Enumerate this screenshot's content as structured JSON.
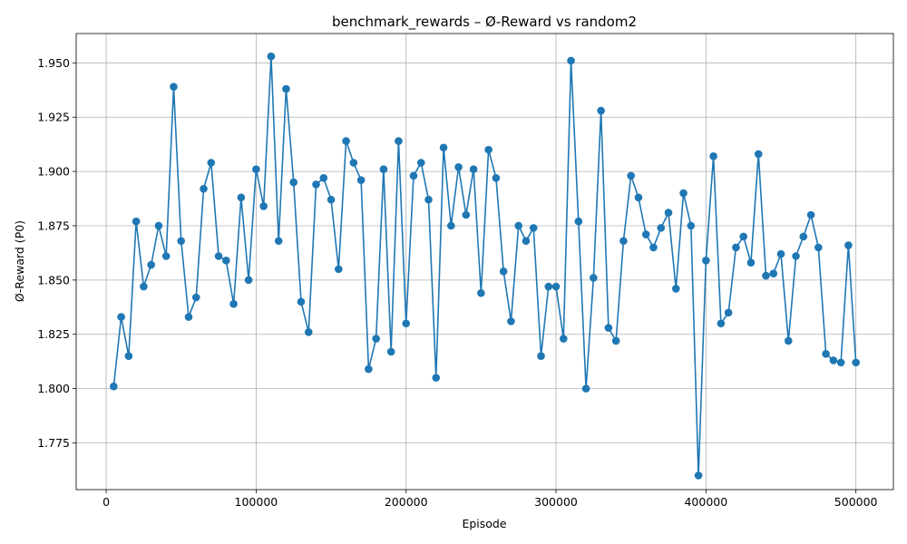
{
  "chart_data": {
    "type": "line",
    "title": "benchmark_rewards – Ø-Reward vs random2",
    "xlabel": "Episode",
    "ylabel": "Ø-Reward (P0)",
    "xlim": [
      -20000,
      525000
    ],
    "ylim": [
      1.7535,
      1.9635
    ],
    "xticks": [
      0,
      100000,
      200000,
      300000,
      400000,
      500000
    ],
    "xtick_labels": [
      "0",
      "100000",
      "200000",
      "300000",
      "400000",
      "500000"
    ],
    "yticks": [
      1.775,
      1.8,
      1.825,
      1.85,
      1.875,
      1.9,
      1.925,
      1.95
    ],
    "ytick_labels": [
      "1.775",
      "1.800",
      "1.825",
      "1.850",
      "1.875",
      "1.900",
      "1.925",
      "1.950"
    ],
    "grid": true,
    "color": "#1f77b4",
    "marker": "circle",
    "x": [
      5000,
      10000,
      15000,
      20000,
      25000,
      30000,
      35000,
      40000,
      45000,
      50000,
      55000,
      60000,
      65000,
      70000,
      75000,
      80000,
      85000,
      90000,
      95000,
      100000,
      105000,
      110000,
      115000,
      120000,
      125000,
      130000,
      135000,
      140000,
      145000,
      150000,
      155000,
      160000,
      165000,
      170000,
      175000,
      180000,
      185000,
      190000,
      195000,
      200000,
      205000,
      210000,
      215000,
      220000,
      225000,
      230000,
      235000,
      240000,
      245000,
      250000,
      255000,
      260000,
      265000,
      270000,
      275000,
      280000,
      285000,
      290000,
      295000,
      300000,
      305000,
      310000,
      315000,
      320000,
      325000,
      330000,
      335000,
      340000,
      345000,
      350000,
      355000,
      360000,
      365000,
      370000,
      375000,
      380000,
      385000,
      390000,
      395000,
      400000,
      405000,
      410000,
      415000,
      420000,
      425000,
      430000,
      435000,
      440000,
      445000,
      450000,
      455000,
      460000,
      465000,
      470000,
      475000,
      480000,
      485000,
      490000,
      495000,
      500000
    ],
    "y": [
      1.801,
      1.833,
      1.815,
      1.877,
      1.847,
      1.857,
      1.875,
      1.861,
      1.939,
      1.868,
      1.833,
      1.842,
      1.892,
      1.904,
      1.861,
      1.859,
      1.839,
      1.888,
      1.85,
      1.901,
      1.884,
      1.953,
      1.868,
      1.938,
      1.895,
      1.84,
      1.826,
      1.894,
      1.897,
      1.887,
      1.855,
      1.914,
      1.904,
      1.896,
      1.809,
      1.823,
      1.901,
      1.817,
      1.914,
      1.83,
      1.898,
      1.904,
      1.887,
      1.805,
      1.911,
      1.875,
      1.902,
      1.88,
      1.901,
      1.844,
      1.91,
      1.897,
      1.854,
      1.831,
      1.875,
      1.868,
      1.874,
      1.815,
      1.847,
      1.847,
      1.823,
      1.951,
      1.877,
      1.8,
      1.851,
      1.928,
      1.828,
      1.822,
      1.868,
      1.898,
      1.888,
      1.871,
      1.865,
      1.874,
      1.881,
      1.846,
      1.89,
      1.875,
      1.76,
      1.859,
      1.907,
      1.83,
      1.835,
      1.865,
      1.87,
      1.858,
      1.908,
      1.852,
      1.853,
      1.862,
      1.822,
      1.861,
      1.87,
      1.88,
      1.865,
      1.816,
      1.813,
      1.812,
      1.866,
      1.812
    ]
  }
}
